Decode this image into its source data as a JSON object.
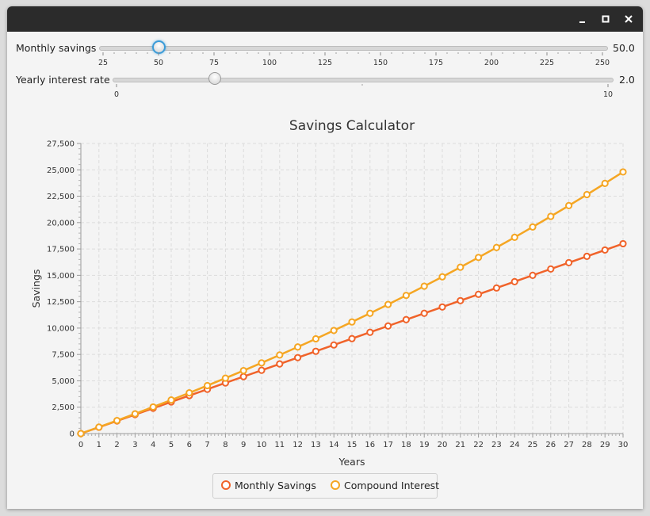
{
  "window": {
    "minimize_icon": "minimize-icon",
    "maximize_icon": "maximize-icon",
    "close_icon": "close-icon"
  },
  "sliders": {
    "monthly": {
      "label": "Monthly savings",
      "value": "50.0",
      "level": 50,
      "min": 25,
      "max": 250,
      "ticks": [
        "25",
        "50",
        "75",
        "100",
        "125",
        "150",
        "175",
        "200",
        "225",
        "250"
      ]
    },
    "interest": {
      "label": "Yearly interest rate",
      "value": "2.0",
      "level": 2,
      "min": 0,
      "max": 10,
      "ticks": [
        "0",
        "10"
      ]
    }
  },
  "chart_data": {
    "type": "line",
    "title": "Savings Calculator",
    "xlabel": "Years",
    "ylabel": "Savings",
    "xlim": [
      0,
      30
    ],
    "ylim": [
      0,
      27500
    ],
    "grid": true,
    "legend": "bottom",
    "x_ticks": [
      "0",
      "1",
      "2",
      "3",
      "4",
      "5",
      "6",
      "7",
      "8",
      "9",
      "10",
      "11",
      "12",
      "13",
      "14",
      "15",
      "16",
      "17",
      "18",
      "19",
      "20",
      "21",
      "22",
      "23",
      "24",
      "25",
      "26",
      "27",
      "28",
      "29",
      "30"
    ],
    "y_ticks": [
      "0",
      "2,500",
      "5,000",
      "7,500",
      "10,000",
      "12,500",
      "15,000",
      "17,500",
      "20,000",
      "22,500",
      "25,000",
      "27,500"
    ],
    "y_tick_values": [
      0,
      2500,
      5000,
      7500,
      10000,
      12500,
      15000,
      17500,
      20000,
      22500,
      25000,
      27500
    ],
    "x": [
      0,
      1,
      2,
      3,
      4,
      5,
      6,
      7,
      8,
      9,
      10,
      11,
      12,
      13,
      14,
      15,
      16,
      17,
      18,
      19,
      20,
      21,
      22,
      23,
      24,
      25,
      26,
      27,
      28,
      29,
      30
    ],
    "series": [
      {
        "name": "Monthly Savings",
        "color": "#f0632a",
        "values": [
          0,
          600,
          1200,
          1800,
          2400,
          3000,
          3600,
          4200,
          4800,
          5400,
          6000,
          6600,
          7200,
          7800,
          8400,
          9000,
          9600,
          10200,
          10800,
          11400,
          12000,
          12600,
          13200,
          13800,
          14400,
          15000,
          15600,
          16200,
          16800,
          17400,
          18000
        ]
      },
      {
        "name": "Compound Interest",
        "color": "#f5a623",
        "values": [
          0,
          612,
          1236,
          1873,
          2523,
          3185,
          3861,
          4550,
          5253,
          5969,
          6700,
          7446,
          8206,
          8982,
          9774,
          10580,
          11403,
          12242,
          13098,
          13971,
          14861,
          15769,
          16695,
          17640,
          18603,
          19585,
          20587,
          21609,
          22652,
          23716,
          24800
        ]
      }
    ]
  }
}
